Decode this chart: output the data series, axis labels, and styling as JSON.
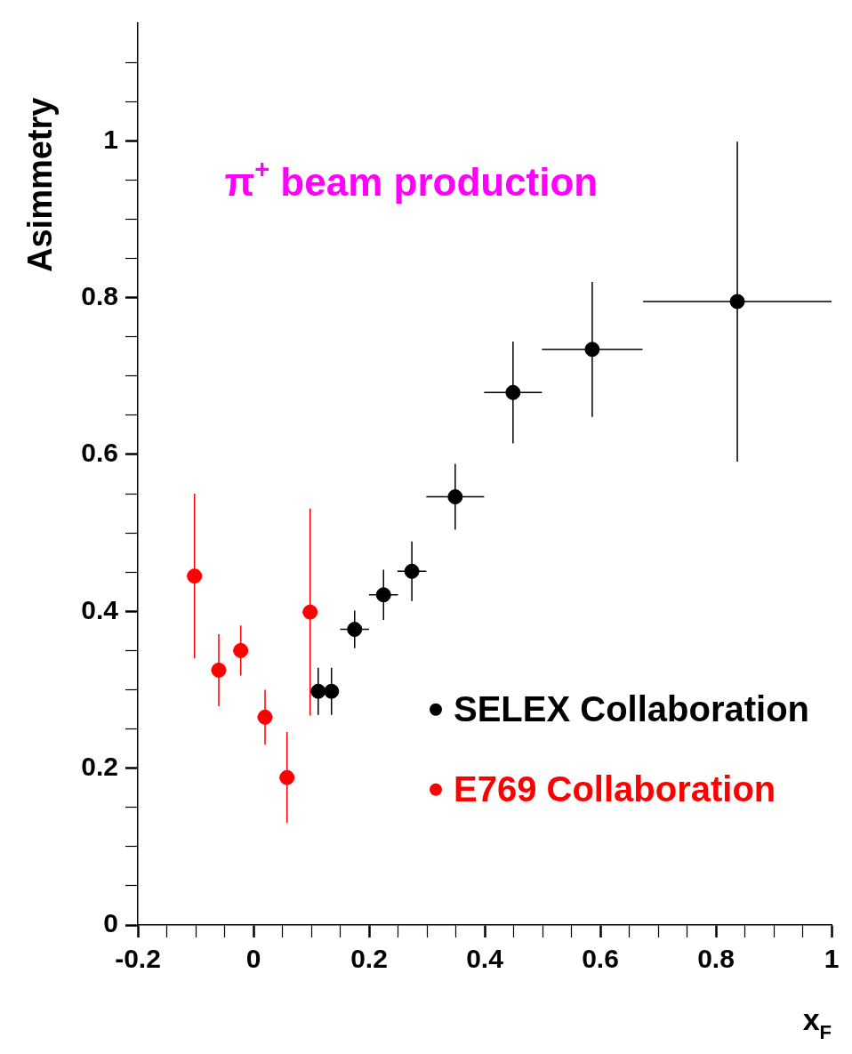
{
  "chart_data": {
    "type": "scatter",
    "title": "π$^{+}$ beam production",
    "xlabel": "x$_{F}$",
    "ylabel": "Asimmetry",
    "xlim": [
      -0.2,
      1
    ],
    "xticks": [
      -0.2,
      {
        "value": -0.15,
        "label": null
      },
      {
        "value": -0.1,
        "label": null
      },
      {
        "value": -0.05,
        "label": null
      },
      0,
      {
        "value": 0.05,
        "label": null
      },
      {
        "value": 0.1,
        "label": null
      },
      {
        "value": 0.15,
        "label": null
      },
      0.2,
      {
        "value": 0.25,
        "label": null
      },
      {
        "value": 0.3,
        "label": null
      },
      {
        "value": 0.35,
        "label": null
      },
      0.4,
      {
        "value": 0.45,
        "label": null
      },
      {
        "value": 0.5,
        "label": null
      },
      {
        "value": 0.55,
        "label": null
      },
      0.6,
      {
        "value": 0.65,
        "label": null
      },
      {
        "value": 0.7,
        "label": null
      },
      {
        "value": 0.75,
        "label": null
      },
      0.8,
      {
        "value": 0.85,
        "label": null
      },
      {
        "value": 0.9,
        "label": null
      },
      {
        "value": 0.95,
        "label": null
      },
      1
    ],
    "ylim": [
      0,
      1.15
    ],
    "yticks": [
      0,
      {
        "value": 0.05,
        "label": null
      },
      {
        "value": 0.1,
        "label": null
      },
      {
        "value": 0.15,
        "label": null
      },
      0.2,
      {
        "value": 0.25,
        "label": null
      },
      {
        "value": 0.3,
        "label": null
      },
      {
        "value": 0.35,
        "label": null
      },
      0.4,
      {
        "value": 0.45,
        "label": null
      },
      {
        "value": 0.5,
        "label": null
      },
      {
        "value": 0.55,
        "label": null
      },
      0.6,
      {
        "value": 0.65,
        "label": null
      },
      {
        "value": 0.7,
        "label": null
      },
      {
        "value": 0.75,
        "label": null
      },
      0.8,
      {
        "value": 0.85,
        "label": null
      },
      {
        "value": 0.9,
        "label": null
      },
      {
        "value": 0.95,
        "label": null
      },
      1,
      {
        "value": 1.05,
        "label": null
      },
      {
        "value": 1.1,
        "label": null
      }
    ],
    "grid": false,
    "legend": "bottom right",
    "marker": "circle",
    "series": [
      {
        "name": "SELEX Collaboration",
        "color": "#000000",
        "x": [
          0.112,
          0.135,
          0.175,
          0.225,
          0.274,
          0.349,
          0.449,
          0.586,
          0.837
        ],
        "values": [
          0.298,
          0.298,
          0.377,
          0.421,
          0.451,
          0.546,
          0.679,
          0.734,
          0.795
        ],
        "errors": [
          0.03,
          0.03,
          0.024,
          0.032,
          0.038,
          0.042,
          0.065,
          0.086,
          0.204
        ],
        "xerrors": [
          0.012,
          0.012,
          0.025,
          0.025,
          0.025,
          0.05,
          0.05,
          0.087,
          0.163
        ]
      },
      {
        "name": "E769 Collaboration",
        "color": "#ff0000",
        "x": [
          -0.102,
          -0.06,
          -0.022,
          0.02,
          0.058,
          0.098
        ],
        "values": [
          0.445,
          0.325,
          0.35,
          0.265,
          0.188,
          0.399
        ],
        "errors": [
          0.105,
          0.046,
          0.032,
          0.035,
          0.058,
          0.132
        ],
        "xerrors": [
          0.013,
          0.013,
          0.013,
          0.013,
          0.013,
          0.013
        ]
      }
    ]
  }
}
